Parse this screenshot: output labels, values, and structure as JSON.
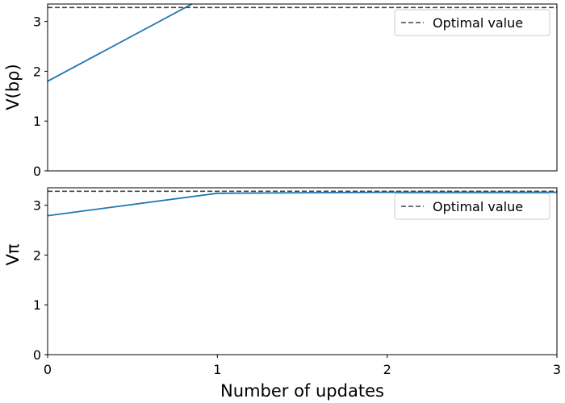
{
  "chart_data": [
    {
      "type": "line",
      "ylabel": "V(bρ)",
      "xlabel": "",
      "xlim": [
        0,
        3
      ],
      "ylim": [
        0,
        3.35
      ],
      "y_ticks": [
        "0",
        "1",
        "2",
        "3"
      ],
      "grid": false,
      "legend": {
        "position": "top-right",
        "entries": [
          "Optimal value"
        ]
      },
      "optimal_value": 3.28,
      "series": [
        {
          "color": "#1f77b4",
          "x": [
            0,
            0.85
          ],
          "y": [
            1.8,
            3.35
          ]
        }
      ]
    },
    {
      "type": "line",
      "ylabel": "Vπ",
      "xlabel": "Number of updates",
      "xlim": [
        0,
        3
      ],
      "ylim": [
        0,
        3.35
      ],
      "x_ticks": [
        "0",
        "1",
        "2",
        "3"
      ],
      "y_ticks": [
        "0",
        "1",
        "2",
        "3"
      ],
      "grid": false,
      "legend": {
        "position": "top-right",
        "entries": [
          "Optimal value"
        ]
      },
      "optimal_value": 3.28,
      "series": [
        {
          "color": "#1f77b4",
          "x": [
            0,
            1,
            2,
            3
          ],
          "y": [
            2.79,
            3.24,
            3.26,
            3.26
          ]
        }
      ]
    }
  ],
  "colors": {
    "series": "#1f77b4",
    "optimal": "#444444",
    "axis": "#000000"
  }
}
